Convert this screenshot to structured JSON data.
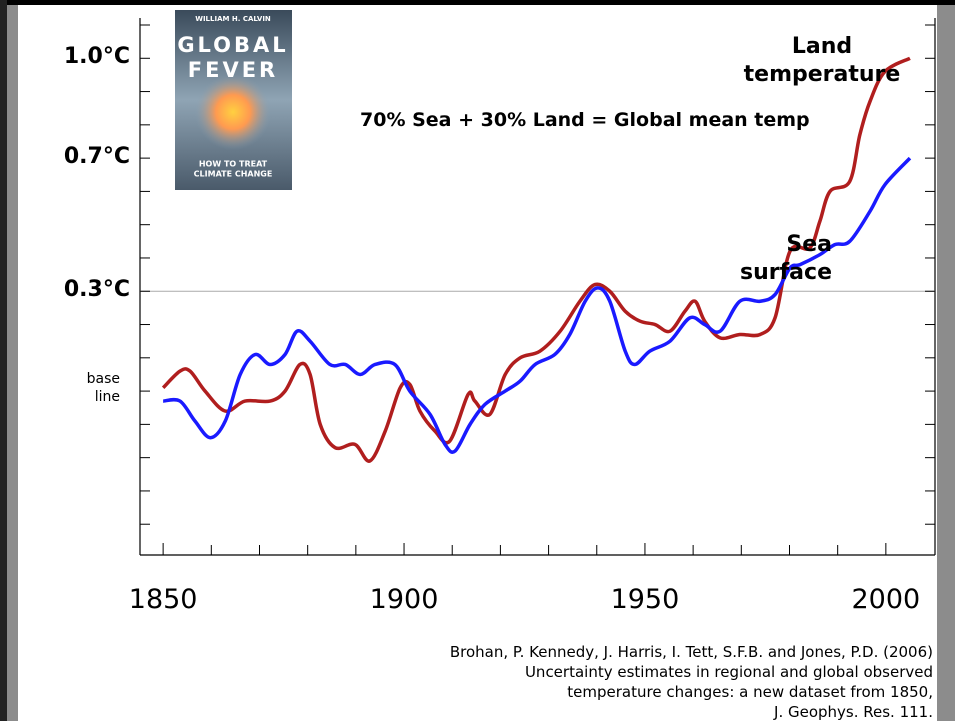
{
  "chart_data": {
    "type": "line",
    "annotation": "70% Sea + 30% Land = Global mean temp",
    "citation": [
      "Brohan, P. Kennedy, J. Harris, I. Tett, S.F.B. and Jones, P.D. (2006)",
      "Uncertainty estimates in regional and global observed",
      "temperature changes: a new dataset from 1850,",
      "J. Geophys. Res. 111."
    ],
    "book": {
      "author": "WILLIAM H. CALVIN",
      "title": [
        "GLOBAL",
        "FEVER"
      ],
      "subtitle": [
        "HOW TO TREAT",
        "CLIMATE CHANGE"
      ]
    },
    "xlim": [
      1845.2,
      2010.2
    ],
    "xticks": [
      1850,
      1900,
      1950,
      2000
    ],
    "xminor_ticks": [
      1860,
      1870,
      1880,
      1890,
      1910,
      1920,
      1930,
      1940,
      1960,
      1970,
      1980,
      1990
    ],
    "ylim": [
      -0.5,
      1.1
    ],
    "yticks": [
      {
        "value": 1.0,
        "label": "1.0°C"
      },
      {
        "value": 0.7,
        "label": "0.7°C"
      },
      {
        "value": 0.3,
        "label": "0.3°C"
      },
      {
        "value": 0,
        "label": "base line"
      }
    ],
    "yminor_ticks": [
      -0.4,
      -0.3,
      -0.2,
      -0.1,
      0.1,
      0.2,
      0.4,
      0.5,
      0.6,
      0.8,
      0.9,
      1.1
    ],
    "hline": 0.3,
    "series": [
      {
        "name": "Land temperature",
        "color": "#b01e1e",
        "x": [
          1850,
          1853.5,
          1855.6,
          1858.7,
          1862.9,
          1867,
          1872.2,
          1875.3,
          1878.4,
          1880.5,
          1882.6,
          1885.7,
          1889.8,
          1892.9,
          1896.1,
          1899.2,
          1901.2,
          1903.3,
          1906.4,
          1909.5,
          1913.3,
          1914.7,
          1917.8,
          1921,
          1924.1,
          1928.2,
          1932.4,
          1936.5,
          1939.6,
          1942.7,
          1945.9,
          1949,
          1952.1,
          1955.2,
          1958.3,
          1960.4,
          1962.4,
          1965.6,
          1969.7,
          1973.9,
          1977,
          1980.1,
          1984.2,
          1986.3,
          1988.4,
          1992.5,
          1994.6,
          1996.7,
          1999.8,
          2005
        ],
        "values": [
          0.01,
          0.06,
          0.06,
          0.0,
          -0.06,
          -0.03,
          -0.03,
          0.0,
          0.08,
          0.05,
          -0.1,
          -0.17,
          -0.16,
          -0.21,
          -0.12,
          0.01,
          0.02,
          -0.06,
          -0.12,
          -0.15,
          -0.01,
          -0.03,
          -0.07,
          0.05,
          0.1,
          0.12,
          0.18,
          0.27,
          0.32,
          0.3,
          0.24,
          0.21,
          0.2,
          0.18,
          0.24,
          0.27,
          0.21,
          0.16,
          0.17,
          0.17,
          0.22,
          0.42,
          0.43,
          0.51,
          0.6,
          0.63,
          0.77,
          0.87,
          0.96,
          1.0
        ]
      },
      {
        "name": "Sea surface",
        "color": "#1a1aff",
        "x": [
          1850,
          1853.5,
          1856.6,
          1859.8,
          1862.9,
          1866,
          1869.1,
          1872.2,
          1875.3,
          1877.8,
          1880.5,
          1884.6,
          1887.8,
          1890.9,
          1894,
          1898.1,
          1901.2,
          1905.4,
          1908.5,
          1910.6,
          1913.7,
          1916.8,
          1921,
          1924.1,
          1927.2,
          1931.3,
          1934.4,
          1937.6,
          1940.2,
          1942.7,
          1945.9,
          1947.9,
          1951,
          1955.2,
          1959.3,
          1962.4,
          1965.6,
          1969.7,
          1973.9,
          1977,
          1980.1,
          1982.2,
          1986.3,
          1989.4,
          1992.5,
          1996.7,
          1999.8,
          2005
        ],
        "values": [
          -0.03,
          -0.03,
          -0.09,
          -0.14,
          -0.09,
          0.05,
          0.11,
          0.08,
          0.11,
          0.18,
          0.15,
          0.08,
          0.08,
          0.05,
          0.08,
          0.08,
          0.0,
          -0.07,
          -0.16,
          -0.18,
          -0.1,
          -0.04,
          0.0,
          0.03,
          0.08,
          0.11,
          0.17,
          0.27,
          0.31,
          0.27,
          0.12,
          0.08,
          0.12,
          0.15,
          0.22,
          0.2,
          0.18,
          0.27,
          0.27,
          0.29,
          0.37,
          0.38,
          0.41,
          0.44,
          0.45,
          0.54,
          0.62,
          0.7
        ]
      }
    ]
  }
}
